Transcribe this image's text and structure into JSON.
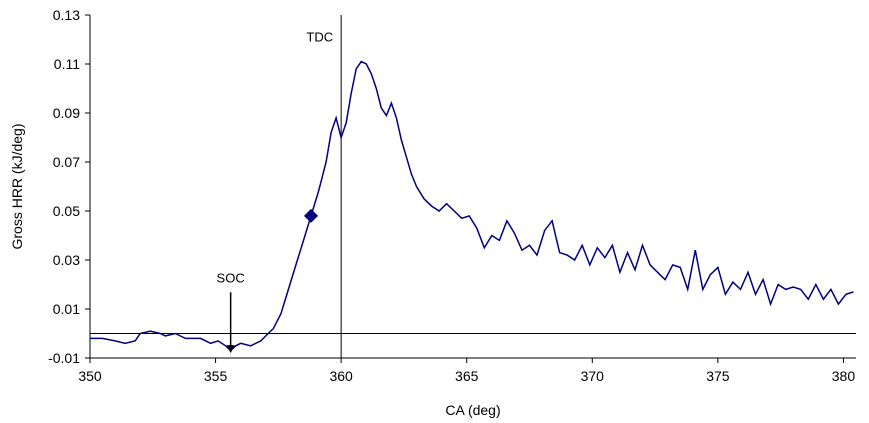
{
  "chart_data": {
    "type": "line",
    "title": "",
    "xlabel": "CA (deg)",
    "ylabel": "Gross HRR (kJ/deg)",
    "xlim": [
      350,
      380.5
    ],
    "ylim": [
      -0.01,
      0.13
    ],
    "x_ticks": [
      350,
      355,
      360,
      365,
      370,
      375,
      380
    ],
    "y_ticks": [
      -0.01,
      0.01,
      0.03,
      0.05,
      0.07,
      0.09,
      0.11,
      0.13
    ],
    "x_tick_labels": [
      "350",
      "355",
      "360",
      "365",
      "370",
      "375",
      "380"
    ],
    "y_tick_labels": [
      "-0.01",
      "0.01",
      "0.03",
      "0.05",
      "0.07",
      "0.09",
      "0.11",
      "0.13"
    ],
    "grid": false,
    "legend": "none",
    "line_color": "#000080",
    "zero_line_y": 0,
    "series": [
      {
        "x": [
          350,
          350.5,
          351,
          351.4,
          351.8,
          352,
          352.4,
          352.8,
          353,
          353.4,
          353.8,
          354,
          354.4,
          354.8,
          355.1,
          355.4,
          355.6,
          355.8,
          356,
          356.4,
          356.8,
          357,
          357.3,
          357.6,
          357.9,
          358.2,
          358.5,
          358.8,
          359.1,
          359.4,
          359.6,
          359.8,
          360,
          360.2,
          360.4,
          360.6,
          360.8,
          361.0,
          361.2,
          361.4,
          361.6,
          361.8,
          362.0,
          362.2,
          362.4,
          362.6,
          362.8,
          363.0,
          363.3,
          363.6,
          363.9,
          364.2,
          364.5,
          364.8,
          365.1,
          365.4,
          365.7,
          366.0,
          366.3,
          366.6,
          366.9,
          367.2,
          367.5,
          367.8,
          368.1,
          368.4,
          368.7,
          369.0,
          369.3,
          369.6,
          369.9,
          370.2,
          370.5,
          370.8,
          371.1,
          371.4,
          371.7,
          372.0,
          372.3,
          372.6,
          372.9,
          373.2,
          373.5,
          373.8,
          374.1,
          374.4,
          374.7,
          375.0,
          375.3,
          375.6,
          375.9,
          376.2,
          376.5,
          376.8,
          377.1,
          377.4,
          377.7,
          378.0,
          378.3,
          378.6,
          378.9,
          379.2,
          379.5,
          379.8,
          380.1,
          380.4
        ],
        "y": [
          -0.002,
          -0.002,
          -0.003,
          -0.004,
          -0.003,
          0.0,
          0.001,
          0.0,
          -0.001,
          0.0,
          -0.002,
          -0.002,
          -0.002,
          -0.004,
          -0.003,
          -0.005,
          -0.007,
          -0.005,
          -0.004,
          -0.005,
          -0.003,
          -0.001,
          0.002,
          0.008,
          0.018,
          0.028,
          0.038,
          0.048,
          0.058,
          0.07,
          0.082,
          0.088,
          0.08,
          0.086,
          0.098,
          0.108,
          0.111,
          0.11,
          0.106,
          0.1,
          0.092,
          0.089,
          0.094,
          0.088,
          0.079,
          0.072,
          0.065,
          0.06,
          0.055,
          0.052,
          0.05,
          0.053,
          0.05,
          0.047,
          0.048,
          0.043,
          0.035,
          0.04,
          0.038,
          0.046,
          0.041,
          0.034,
          0.036,
          0.032,
          0.042,
          0.046,
          0.033,
          0.032,
          0.03,
          0.036,
          0.028,
          0.035,
          0.031,
          0.036,
          0.025,
          0.033,
          0.026,
          0.036,
          0.028,
          0.025,
          0.022,
          0.028,
          0.027,
          0.018,
          0.034,
          0.018,
          0.024,
          0.027,
          0.016,
          0.021,
          0.018,
          0.025,
          0.016,
          0.022,
          0.012,
          0.02,
          0.018,
          0.019,
          0.018,
          0.014,
          0.02,
          0.014,
          0.018,
          0.012,
          0.016,
          0.017
        ]
      }
    ],
    "marker": {
      "x": 358.8,
      "y": 0.048,
      "shape": "diamond",
      "color": "#000080"
    },
    "annotations": [
      {
        "text": "TDC",
        "x": 360,
        "y": 0.125,
        "note": "vertical line at 360"
      },
      {
        "text": "SOC",
        "x": 355.6,
        "y": 0.016,
        "arrow_to_y": -0.008
      }
    ]
  }
}
